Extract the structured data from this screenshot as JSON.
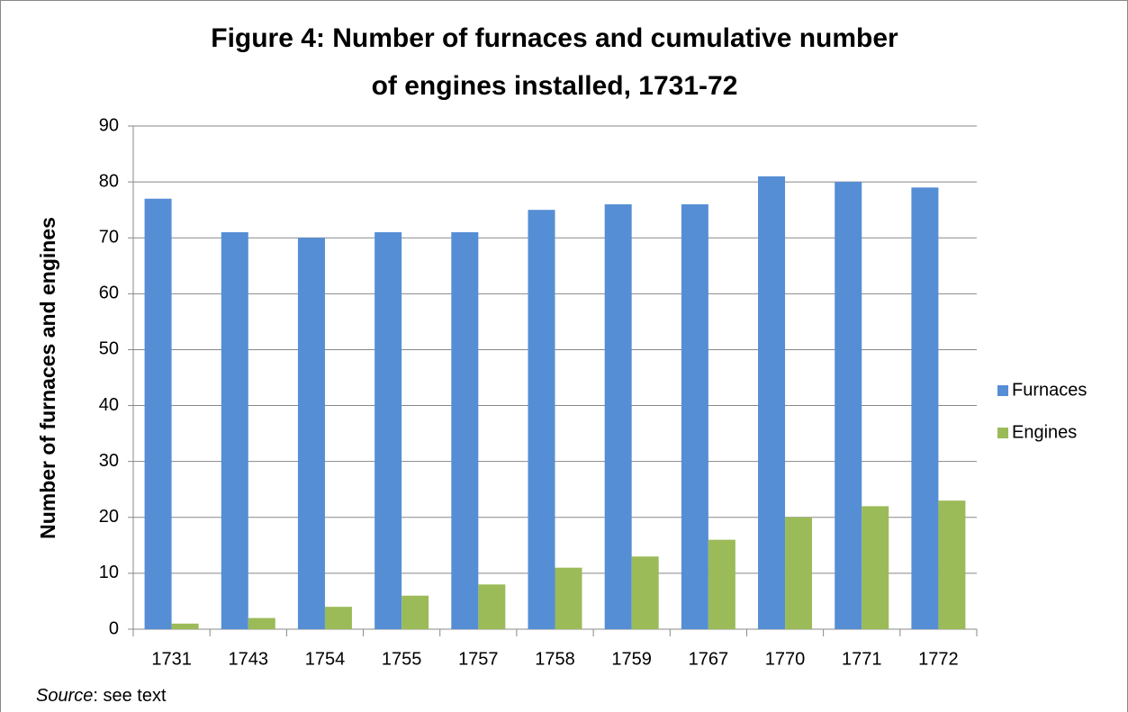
{
  "chart_data": {
    "type": "bar",
    "title": [
      "Figure 4: Number of furnaces and cumulative number",
      "of engines installed, 1731-72"
    ],
    "ylabel": "Number of furnaces and engines",
    "categories": [
      "1731",
      "1743",
      "1754",
      "1755",
      "1757",
      "1758",
      "1759",
      "1767",
      "1770",
      "1771",
      "1772"
    ],
    "series": [
      {
        "name": "Furnaces",
        "color": "#558ed5",
        "values": [
          77,
          71,
          70,
          71,
          71,
          75,
          76,
          76,
          81,
          80,
          79
        ]
      },
      {
        "name": "Engines",
        "color": "#9bbb59",
        "values": [
          1,
          2,
          4,
          6,
          8,
          11,
          13,
          16,
          20,
          22,
          23
        ]
      }
    ],
    "ylim": [
      0,
      90
    ],
    "yticks": [
      0,
      10,
      20,
      30,
      40,
      50,
      60,
      70,
      80,
      90
    ],
    "grid": true,
    "legend": "right",
    "source_label": "Source",
    "source_text": ": see text"
  }
}
